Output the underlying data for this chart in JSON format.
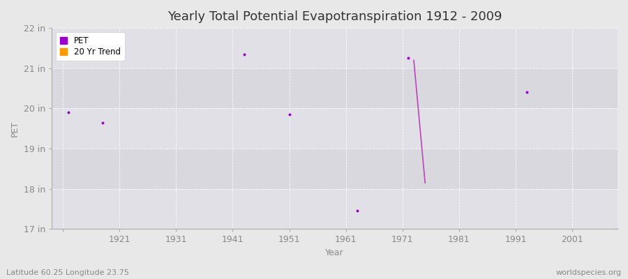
{
  "title": "Yearly Total Potential Evapotranspiration 1912 - 2009",
  "xlabel": "Year",
  "ylabel": "PET",
  "subtitle_left": "Latitude 60.25 Longitude 23.75",
  "subtitle_right": "worldspecies.org",
  "background_color": "#e8e8e8",
  "plot_bg_color": "#ebebeb",
  "band_color_light": "#e0e0e6",
  "band_color_dark": "#d8d8de",
  "ylim": [
    17,
    22
  ],
  "yticks": [
    17,
    18,
    19,
    20,
    21,
    22
  ],
  "ytick_labels": [
    "17 in",
    "18 in",
    "19 in",
    "20 in",
    "21 in",
    "22 in"
  ],
  "xlim": [
    1909,
    2009
  ],
  "xticks": [
    1911,
    1921,
    1931,
    1941,
    1951,
    1961,
    1971,
    1981,
    1991,
    2001
  ],
  "xtick_labels": [
    "",
    "1921",
    "1931",
    "1941",
    "1951",
    "1961",
    "1971",
    "1981",
    "1991",
    "2001"
  ],
  "pet_points": {
    "years": [
      1912,
      1918,
      1943,
      1951,
      1963,
      1972,
      1993
    ],
    "values": [
      19.9,
      19.65,
      21.35,
      19.85,
      17.45,
      21.25,
      20.4
    ]
  },
  "trend_line": {
    "years": [
      1973,
      1975
    ],
    "values": [
      21.2,
      18.15
    ]
  },
  "pet_color": "#9900cc",
  "trend_color": "#bb44bb",
  "legend_pet_color": "#9900cc",
  "legend_trend_color": "#ff9900",
  "grid_color": "#cccccc",
  "tick_color": "#888888",
  "spine_color": "#aaaaaa",
  "title_fontsize": 13,
  "label_fontsize": 9,
  "tick_fontsize": 9
}
